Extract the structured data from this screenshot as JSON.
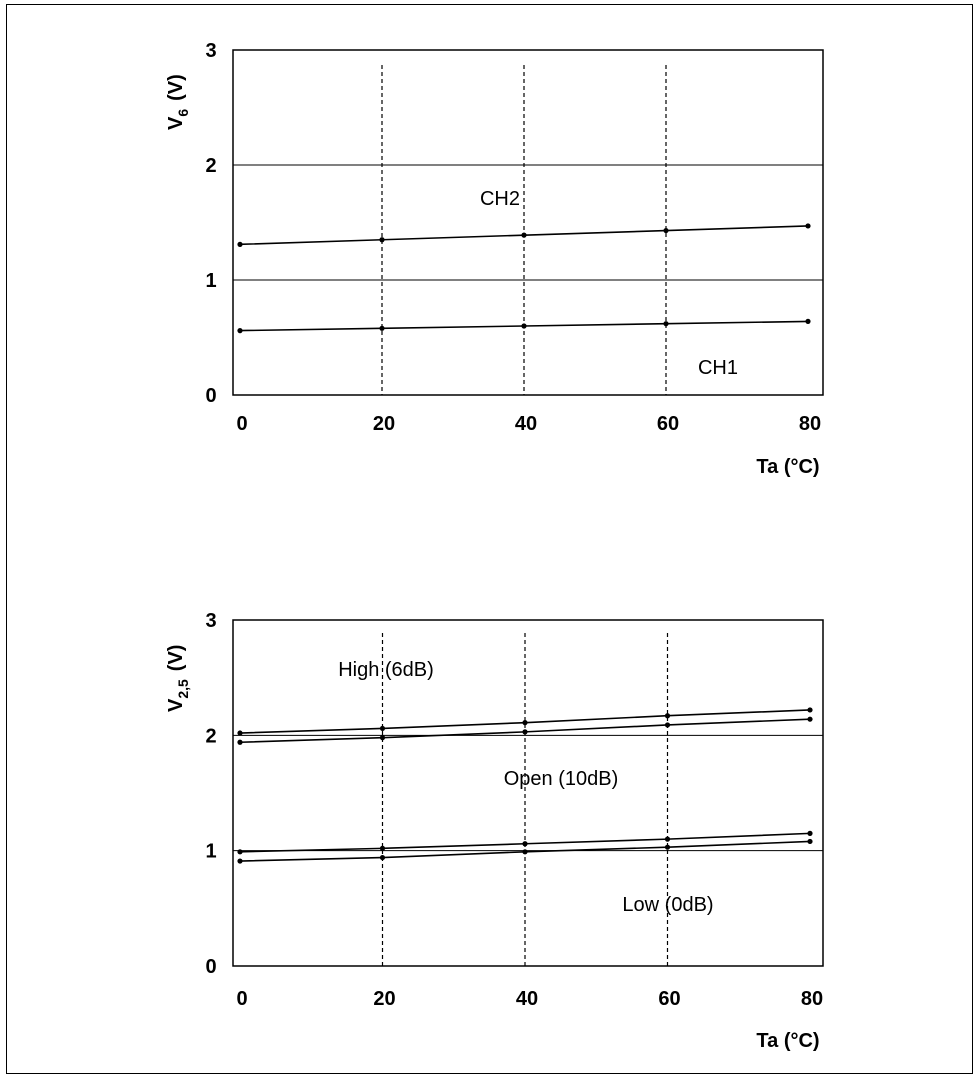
{
  "chart_data": [
    {
      "type": "line",
      "title": "",
      "xlabel": "Ta (°C)",
      "ylabel": "V6 (V)",
      "ylabel_main": "V",
      "ylabel_sub": "6",
      "ylabel_unit": "(V)",
      "x_ticks": [
        "0",
        "20",
        "40",
        "60",
        "80"
      ],
      "y_ticks": [
        "0",
        "1",
        "2",
        "3"
      ],
      "xlim": [
        0,
        80
      ],
      "ylim": [
        0,
        3
      ],
      "grid": "dashed vertical at 20, 40, 60",
      "ref_lines": [
        1,
        2
      ],
      "annotations": [
        "CH2",
        "CH1"
      ],
      "series": [
        {
          "x": [
            0,
            20,
            40,
            60,
            80
          ],
          "values": [
            1.31,
            1.35,
            1.39,
            1.43,
            1.47
          ]
        },
        {
          "x": [
            0,
            20,
            40,
            60,
            80
          ],
          "values": [
            0.56,
            0.58,
            0.6,
            0.62,
            0.64
          ]
        }
      ]
    },
    {
      "type": "line",
      "title": "",
      "xlabel": "Ta (°C)",
      "ylabel": "V2,5 (V)",
      "ylabel_main": "V",
      "ylabel_sub": "2,5",
      "ylabel_unit": "(V)",
      "x_ticks": [
        "0",
        "20",
        "40",
        "60",
        "80"
      ],
      "y_ticks": [
        "0",
        "1",
        "2",
        "3"
      ],
      "xlim": [
        0,
        80
      ],
      "ylim": [
        0,
        3
      ],
      "grid": "dashed vertical at 20, 40, 60",
      "ref_lines": [
        1,
        2
      ],
      "annotations": [
        "High (6dB)",
        "Open (10dB)",
        "Low (0dB)"
      ],
      "series": [
        {
          "x": [
            0,
            20,
            40,
            60,
            80
          ],
          "values": [
            2.02,
            2.06,
            2.11,
            2.17,
            2.22
          ]
        },
        {
          "x": [
            0,
            20,
            40,
            60,
            80
          ],
          "values": [
            1.94,
            1.98,
            2.03,
            2.09,
            2.14
          ]
        },
        {
          "x": [
            0,
            20,
            40,
            60,
            80
          ],
          "values": [
            0.99,
            1.02,
            1.06,
            1.1,
            1.15
          ]
        },
        {
          "x": [
            0,
            20,
            40,
            60,
            80
          ],
          "values": [
            0.91,
            0.94,
            0.99,
            1.03,
            1.08
          ]
        }
      ]
    }
  ]
}
